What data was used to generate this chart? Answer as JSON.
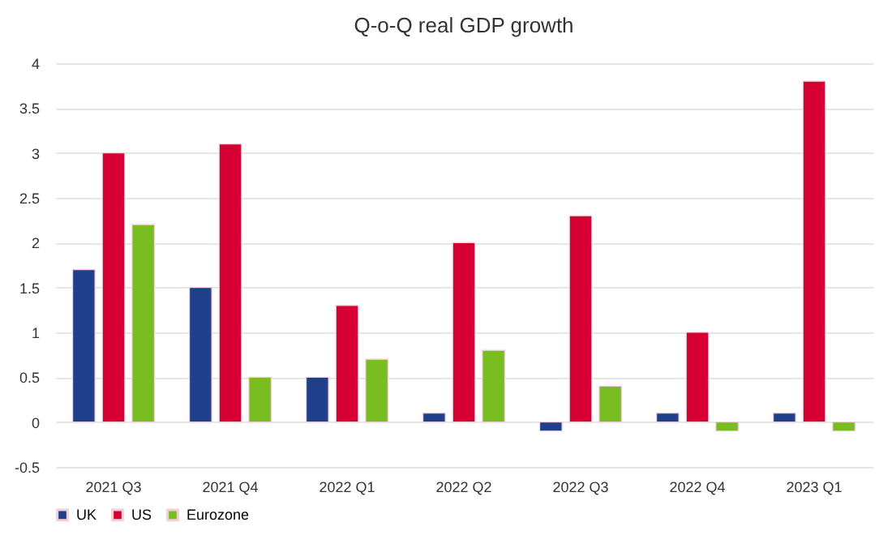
{
  "chart_data": {
    "type": "bar",
    "title": "Q-o-Q real GDP growth",
    "categories": [
      "2021 Q3",
      "2021 Q4",
      "2022 Q1",
      "2022 Q2",
      "2022 Q3",
      "2022 Q4",
      "2023 Q1"
    ],
    "series": [
      {
        "name": "UK",
        "color": "#1f3f8a",
        "values": [
          1.7,
          1.5,
          0.5,
          0.1,
          -0.1,
          0.1,
          0.1
        ]
      },
      {
        "name": "US",
        "color": "#d50032",
        "values": [
          3.0,
          3.1,
          1.3,
          2.0,
          2.3,
          1.0,
          3.8
        ]
      },
      {
        "name": "Eurozone",
        "color": "#78be20",
        "values": [
          2.2,
          0.5,
          0.7,
          0.8,
          0.4,
          -0.1,
          -0.1
        ]
      }
    ],
    "ylim": [
      -0.5,
      4
    ],
    "yticks": [
      -0.5,
      0,
      0.5,
      1,
      1.5,
      2,
      2.5,
      3,
      3.5,
      4
    ],
    "grid": "y",
    "legend": "bottom"
  }
}
